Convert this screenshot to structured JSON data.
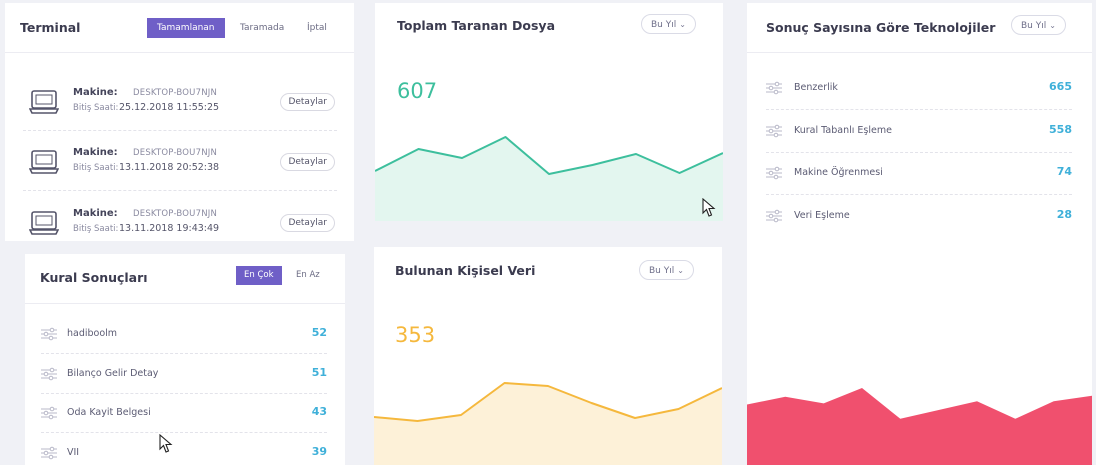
{
  "terminal": {
    "title": "Terminal",
    "tabs": [
      {
        "label": "Tamamlanan",
        "active": true
      },
      {
        "label": "Taramada",
        "active": false
      },
      {
        "label": "İptal",
        "active": false
      }
    ],
    "rows": [
      {
        "machine_label": "Makine:",
        "machine": "DESKTOP-BOU7NJN",
        "end_label": "Bitiş Saati:",
        "end_time": "25.12.2018 11:55:25",
        "button": "Detaylar"
      },
      {
        "machine_label": "Makine:",
        "machine": "DESKTOP-BOU7NJN",
        "end_label": "Bitiş Saati:",
        "end_time": "13.11.2018 20:52:38",
        "button": "Detaylar"
      },
      {
        "machine_label": "Makine:",
        "machine": "DESKTOP-BOU7NJN",
        "end_label": "Bitiş Saati:",
        "end_time": "13.11.2018 19:43:49",
        "button": "Detaylar"
      }
    ]
  },
  "scanned_files": {
    "title": "Toplam Taranan Dosya",
    "filter": "Bu Yıl",
    "value": "607",
    "color": "#3dbf9d",
    "fill": "#e3f6ef",
    "series": [
      50,
      72,
      63,
      84,
      47,
      56,
      67,
      48,
      68
    ]
  },
  "technologies": {
    "title": "Sonuç Sayısına Göre Teknolojiler",
    "filter": "Bu Yıl",
    "items": [
      {
        "name": "Benzerlik",
        "value": "665"
      },
      {
        "name": "Kural Tabanlı Eşleme",
        "value": "558"
      },
      {
        "name": "Makine Öğrenmesi",
        "value": "74"
      },
      {
        "name": "Veri Eşleme",
        "value": "28"
      }
    ]
  },
  "rule_results": {
    "title": "Kural Sonuçları",
    "tabs": [
      {
        "label": "En Çok",
        "active": true
      },
      {
        "label": "En Az",
        "active": false
      }
    ],
    "items": [
      {
        "name": "hadiboolm",
        "value": "52"
      },
      {
        "name": "Bilanço Gelir Detay",
        "value": "51"
      },
      {
        "name": "Oda Kayit Belgesi",
        "value": "43"
      },
      {
        "name": "VII",
        "value": "39"
      }
    ]
  },
  "personal_data": {
    "title": "Bulunan Kişisel Veri",
    "filter": "Bu Yıl",
    "value": "353",
    "color": "#f5b83d",
    "fill": "#fdf1d8",
    "series": [
      48,
      44,
      50,
      82,
      79,
      62,
      47,
      56,
      77
    ]
  },
  "red_chart": {
    "color": "#f0506e",
    "series": [
      55,
      62,
      56,
      70,
      42,
      50,
      58,
      42,
      58,
      63
    ]
  }
}
